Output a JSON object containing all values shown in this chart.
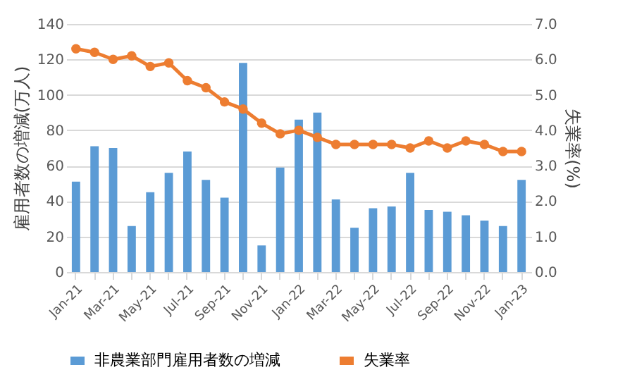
{
  "chart_data": {
    "type": "bar",
    "categories": [
      "Jan-21",
      null,
      "Mar-21",
      null,
      "May-21",
      null,
      "Jul-21",
      null,
      "Sep-21",
      null,
      "Nov-21",
      null,
      "Jan-22",
      null,
      "Mar-22",
      null,
      "May-22",
      null,
      "Jul-22",
      null,
      "Sep-22",
      null,
      "Nov-22",
      null,
      "Jan-23"
    ],
    "series": [
      {
        "name": "非農業部門雇用者数の増減",
        "color": "#5b9bd5",
        "values": [
          51,
          71,
          70,
          26,
          45,
          56,
          68,
          52,
          42,
          118,
          15,
          59,
          86,
          90,
          41,
          25,
          36,
          37,
          56,
          35,
          34,
          32,
          29,
          26,
          52
        ]
      },
      {
        "name": "失業率",
        "color": "#ed7d31",
        "type": "line",
        "axis": "y2",
        "values": [
          6.3,
          6.2,
          6.0,
          6.1,
          5.8,
          5.9,
          5.4,
          5.2,
          4.8,
          4.6,
          4.2,
          3.9,
          4.0,
          3.8,
          3.6,
          3.6,
          3.6,
          3.6,
          3.5,
          3.7,
          3.5,
          3.7,
          3.6,
          3.4,
          3.4
        ]
      }
    ],
    "ylabel": "雇用者数の増減(万人)",
    "y2label": "失業率(%)",
    "ylim": [
      0,
      140
    ],
    "yticks": [
      0,
      20,
      40,
      60,
      80,
      100,
      120,
      140
    ],
    "y2lim": [
      0,
      7
    ],
    "y2ticks": [
      {
        "value": 0,
        "label": "0.0"
      },
      {
        "value": 1,
        "label": "1.0"
      },
      {
        "value": 2,
        "label": "2.0"
      },
      {
        "value": 3,
        "label": "3.0"
      },
      {
        "value": 4,
        "label": "4.0"
      },
      {
        "value": 5,
        "label": "5.0"
      },
      {
        "value": 6,
        "label": "6.0"
      },
      {
        "value": 7,
        "label": "7.0"
      }
    ],
    "grid": "y",
    "legend": "bottom",
    "marker": "circle",
    "line_style": "solid"
  }
}
